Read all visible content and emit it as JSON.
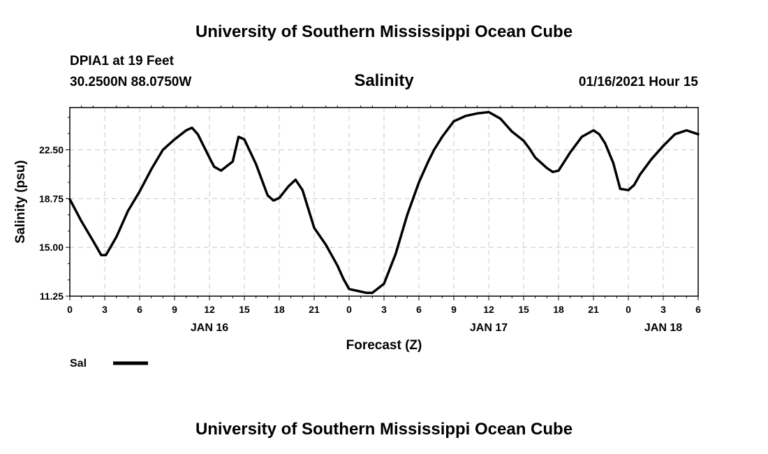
{
  "header": {
    "top_title": "University of Southern Mississippi Ocean Cube",
    "station": "DPIA1 at 19 Feet",
    "coords": "30.2500N 88.0750W",
    "subtitle": "Salinity",
    "timestamp": "01/16/2021 Hour 15"
  },
  "footer": {
    "bottom_title": "University of Southern Mississippi Ocean Cube"
  },
  "legend": {
    "label": "Sal",
    "swatch_color": "#000000"
  },
  "chart_data": {
    "type": "line",
    "title": "Salinity",
    "xlabel": "Forecast (Z)",
    "ylabel": "Salinity (psu)",
    "xlim": [
      0,
      54
    ],
    "ylim": [
      11.25,
      25.75
    ],
    "grid": true,
    "legend_placement": "bottom-left",
    "x_ticks": [
      0,
      3,
      6,
      9,
      12,
      15,
      18,
      21,
      24,
      27,
      30,
      33,
      36,
      39,
      42,
      45,
      48,
      51,
      54
    ],
    "x_tick_labels": [
      "0",
      "3",
      "6",
      "9",
      "12",
      "15",
      "18",
      "21",
      "0",
      "3",
      "6",
      "9",
      "12",
      "15",
      "18",
      "21",
      "0",
      "3",
      "6"
    ],
    "date_labels": [
      {
        "x": 12,
        "label": "JAN 16"
      },
      {
        "x": 36,
        "label": "JAN 17"
      },
      {
        "x": 51,
        "label": "JAN 18"
      }
    ],
    "y_ticks": [
      11.25,
      15.0,
      18.75,
      22.5
    ],
    "y_tick_labels": [
      "11.25",
      "15.00",
      "18.75",
      "22.50"
    ],
    "series": [
      {
        "name": "Sal",
        "color": "#000000",
        "x": [
          0,
          1,
          2,
          2.7,
          3.1,
          4,
          5,
          6,
          7,
          8,
          9,
          10,
          10.5,
          11,
          12,
          12.4,
          13,
          14,
          14.5,
          15,
          16,
          17,
          17.5,
          18,
          18.8,
          19.4,
          20,
          21,
          22,
          23,
          23.5,
          24,
          25,
          25.5,
          26,
          27,
          28,
          29,
          30,
          30.8,
          31.3,
          32,
          33,
          34,
          35,
          36,
          36.4,
          37,
          38,
          39,
          39.5,
          40,
          41,
          41.5,
          42,
          43,
          44,
          45,
          45.5,
          46,
          46.7,
          47.3,
          48,
          48.5,
          49,
          50,
          51,
          52,
          53,
          54
        ],
        "y": [
          18.7,
          17.0,
          15.5,
          14.4,
          14.4,
          15.8,
          17.8,
          19.3,
          21.0,
          22.5,
          23.3,
          24.0,
          24.2,
          23.7,
          21.9,
          21.2,
          20.9,
          21.6,
          23.5,
          23.3,
          21.4,
          19.0,
          18.6,
          18.8,
          19.7,
          20.2,
          19.4,
          16.5,
          15.2,
          13.6,
          12.6,
          11.8,
          11.6,
          11.5,
          11.5,
          12.2,
          14.5,
          17.5,
          20.0,
          21.6,
          22.5,
          23.5,
          24.7,
          25.1,
          25.3,
          25.4,
          25.2,
          24.9,
          23.9,
          23.2,
          22.6,
          21.9,
          21.1,
          20.8,
          20.9,
          22.3,
          23.5,
          24.0,
          23.7,
          23.0,
          21.5,
          19.5,
          19.4,
          19.8,
          20.6,
          21.8,
          22.8,
          23.7,
          24.0,
          23.7
        ]
      }
    ]
  }
}
